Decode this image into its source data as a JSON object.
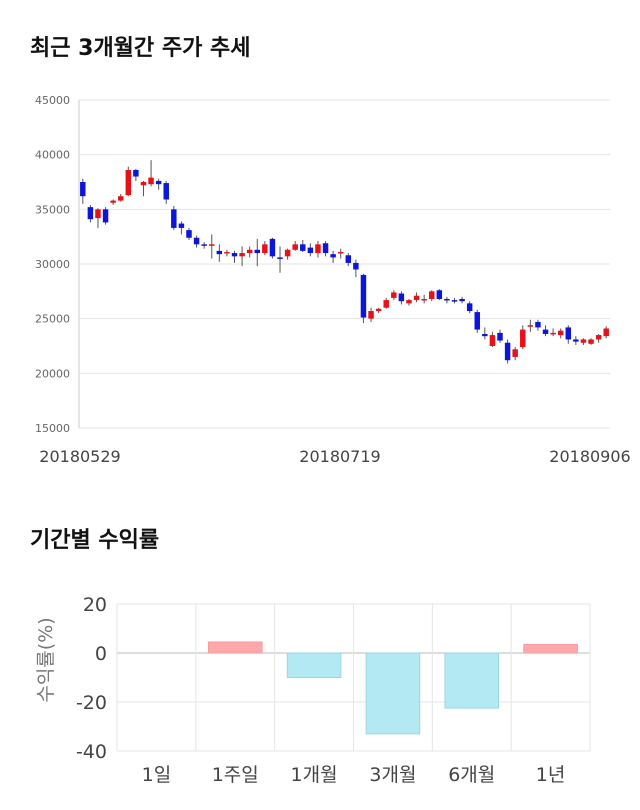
{
  "headings": {
    "price_trend": "최근 3개월간 주가 추세",
    "period_returns": "기간별 수익률"
  },
  "colors": {
    "up": "#e8111a",
    "down": "#0b16d8",
    "bar_positive": "#ffa8ab",
    "bar_negative": "#b3e9f2",
    "grid": "#e6e6e6"
  },
  "chart_data": [
    {
      "type": "candlestick",
      "ylim": [
        15000,
        45000
      ],
      "yticks": [
        15000,
        20000,
        25000,
        30000,
        35000,
        40000,
        45000
      ],
      "xtick_labels": [
        "20180529",
        "20180719",
        "20180906"
      ],
      "candles": [
        [
          37500,
          37800,
          35500,
          36200
        ],
        [
          35200,
          35400,
          33800,
          34100
        ],
        [
          34200,
          35100,
          33300,
          35000
        ],
        [
          35000,
          35200,
          33600,
          33800
        ],
        [
          35600,
          35900,
          35400,
          35800
        ],
        [
          35800,
          36400,
          35700,
          36200
        ],
        [
          36300,
          38900,
          36200,
          38600
        ],
        [
          38600,
          38700,
          37600,
          38000
        ],
        [
          37200,
          37600,
          36200,
          37500
        ],
        [
          37300,
          39500,
          37100,
          37900
        ],
        [
          37600,
          37800,
          36800,
          37300
        ],
        [
          37400,
          37600,
          35500,
          35900
        ],
        [
          35000,
          35300,
          33100,
          33300
        ],
        [
          33700,
          33900,
          32700,
          33300
        ],
        [
          33100,
          33300,
          32200,
          32400
        ],
        [
          32400,
          32600,
          31500,
          31800
        ],
        [
          31800,
          32000,
          31400,
          31700
        ],
        [
          31700,
          32700,
          30500,
          31800
        ],
        [
          31200,
          31800,
          30200,
          30900
        ],
        [
          31000,
          31300,
          30700,
          31100
        ],
        [
          31000,
          31200,
          30100,
          30700
        ],
        [
          30700,
          31600,
          29800,
          31000
        ],
        [
          31000,
          31600,
          30600,
          31300
        ],
        [
          31300,
          32300,
          29800,
          31000
        ],
        [
          31000,
          32100,
          30800,
          31800
        ],
        [
          32300,
          32400,
          30500,
          30700
        ],
        [
          30600,
          31600,
          29200,
          30500
        ],
        [
          30700,
          31400,
          30400,
          31300
        ],
        [
          31300,
          32100,
          31200,
          31800
        ],
        [
          31800,
          32200,
          31100,
          31200
        ],
        [
          31500,
          31900,
          30700,
          31000
        ],
        [
          31000,
          32100,
          30600,
          31800
        ],
        [
          31900,
          32100,
          30700,
          31000
        ],
        [
          30900,
          31200,
          30100,
          30600
        ],
        [
          31000,
          31400,
          30500,
          31100
        ],
        [
          30800,
          31000,
          29800,
          30100
        ],
        [
          30100,
          30400,
          28800,
          29500
        ],
        [
          29000,
          29100,
          24600,
          25100
        ],
        [
          25000,
          26000,
          24700,
          25700
        ],
        [
          25700,
          26000,
          25500,
          25900
        ],
        [
          26000,
          26900,
          25900,
          26700
        ],
        [
          26900,
          27600,
          26700,
          27400
        ],
        [
          27300,
          27500,
          26300,
          26600
        ],
        [
          26400,
          26800,
          26200,
          26700
        ],
        [
          26700,
          27400,
          26500,
          27100
        ],
        [
          26700,
          27200,
          26400,
          26800
        ],
        [
          26800,
          27600,
          26600,
          27500
        ],
        [
          27600,
          27700,
          26700,
          26800
        ],
        [
          26800,
          27000,
          26400,
          26700
        ],
        [
          26700,
          26900,
          26400,
          26600
        ],
        [
          26800,
          27000,
          26400,
          26600
        ],
        [
          26400,
          26600,
          25500,
          25700
        ],
        [
          25600,
          25800,
          23700,
          24000
        ],
        [
          23600,
          24200,
          23100,
          23400
        ],
        [
          22500,
          23800,
          22400,
          23500
        ],
        [
          23700,
          24000,
          22800,
          23000
        ],
        [
          22800,
          23100,
          20900,
          21200
        ],
        [
          21500,
          22400,
          21200,
          22200
        ],
        [
          22400,
          24400,
          22200,
          24000
        ],
        [
          24300,
          24900,
          23800,
          24400
        ],
        [
          24700,
          24900,
          23900,
          24200
        ],
        [
          24000,
          24400,
          23400,
          23600
        ],
        [
          23600,
          24100,
          23400,
          23700
        ],
        [
          23500,
          24100,
          23200,
          23900
        ],
        [
          24200,
          24400,
          22700,
          23100
        ],
        [
          23100,
          23400,
          22600,
          22900
        ],
        [
          22800,
          23200,
          22600,
          23100
        ],
        [
          22700,
          23200,
          22600,
          23100
        ],
        [
          23100,
          23600,
          22800,
          23500
        ],
        [
          23400,
          24300,
          23200,
          24100
        ]
      ]
    },
    {
      "type": "bar",
      "categories": [
        "1일",
        "1주일",
        "1개월",
        "3개월",
        "6개월",
        "1년"
      ],
      "values": [
        0,
        4.5,
        -10,
        -33,
        -22.5,
        3.5
      ],
      "ylabel": "수익률(%)",
      "ylim": [
        -40,
        20
      ],
      "yticks": [
        20,
        0,
        -20,
        -40
      ]
    }
  ]
}
